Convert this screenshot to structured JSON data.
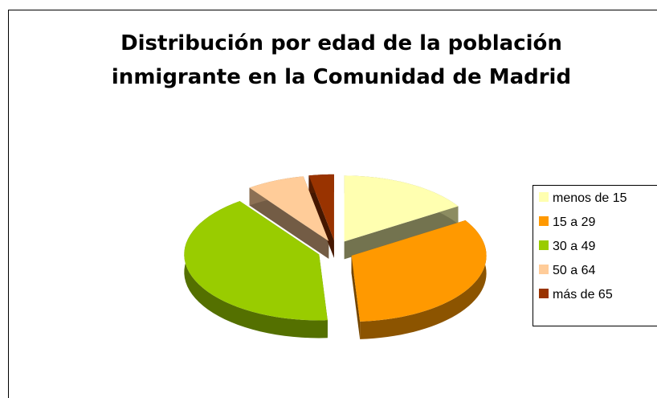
{
  "chart_data": {
    "type": "pie3d",
    "title": [
      "Distribución por edad de la población",
      "inmigrante en la Comunidad de Madrid"
    ],
    "categories": [
      "menos de 15",
      "15 a 29",
      "30 a 49",
      "50 a 64",
      "más de 65"
    ],
    "values": [
      16,
      33,
      41,
      7,
      3
    ],
    "colors": [
      "#ffffb0",
      "#ff9900",
      "#99cc00",
      "#ffcc99",
      "#993300"
    ],
    "legend": "right"
  }
}
